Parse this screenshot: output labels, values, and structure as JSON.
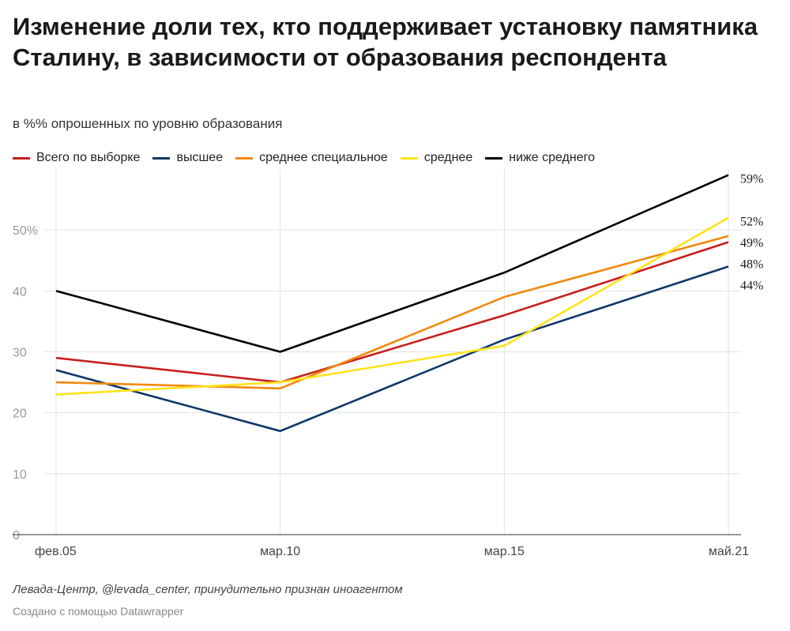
{
  "chart_data": {
    "type": "line",
    "title": "Изменение доли тех, кто поддерживает установку памятника Сталину, в зависимости от образования респондента",
    "subtitle": "в %% опрошенных по уровню образования",
    "categories": [
      "фев.05",
      "мар.10",
      "мар.15",
      "май.21"
    ],
    "y_ticks": [
      "0",
      "10",
      "20",
      "30",
      "40",
      "50%"
    ],
    "y_tick_values": [
      0,
      10,
      20,
      30,
      40,
      50
    ],
    "ylim": [
      0,
      60
    ],
    "grid": true,
    "legend_position": "top-left",
    "series": [
      {
        "name": "Всего по выборке",
        "color": "#c71e1d",
        "values": [
          29,
          25,
          36,
          48
        ],
        "end_label": "48%"
      },
      {
        "name": "высшее",
        "color": "#0f3868",
        "values": [
          27,
          17,
          32,
          44
        ],
        "end_label": "44%"
      },
      {
        "name": "среднее специальное",
        "color": "#f0890e",
        "values": [
          25,
          24,
          39,
          49
        ],
        "end_label": "49%"
      },
      {
        "name": "среднее",
        "color": "#ffe31a",
        "values": [
          23,
          25,
          31,
          52
        ],
        "end_label": "52%"
      },
      {
        "name": "ниже среднего",
        "color": "#000000",
        "values": [
          40,
          30,
          43,
          59
        ],
        "end_label": "59%"
      }
    ]
  },
  "footer": {
    "source": "Левада-Центр, @levada_center, принудительно признан иноагентом",
    "credit": "Создано с помощью Datawrapper"
  }
}
